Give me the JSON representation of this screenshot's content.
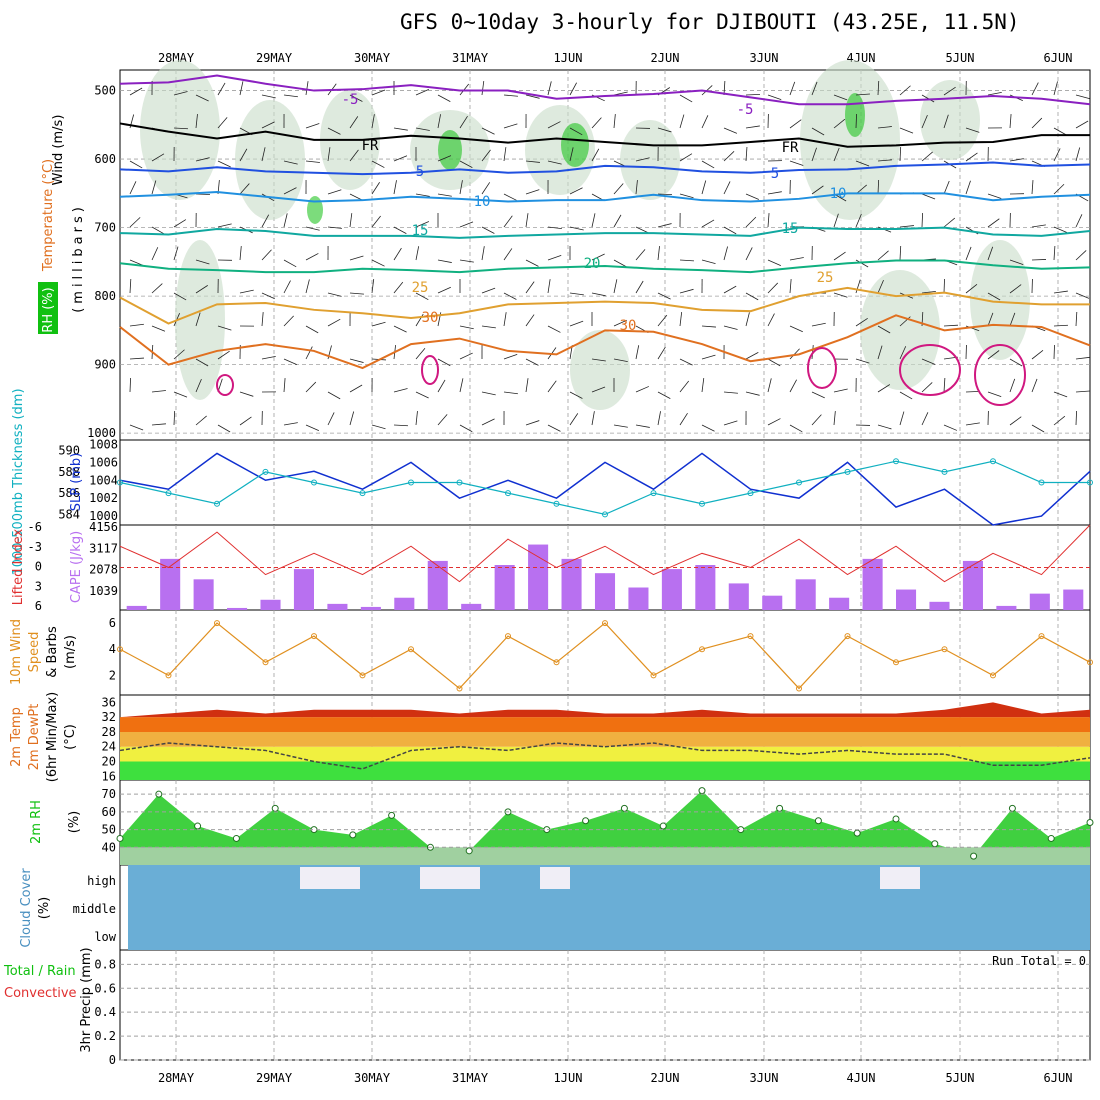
{
  "header": {
    "title": "GFS 0~10day 3-hourly for DJIBOUTI (43.25E, 11.5N)"
  },
  "dates": [
    "28MAY",
    "29MAY",
    "30MAY",
    "31MAY",
    "1JUN",
    "2JUN",
    "3JUN",
    "4JUN",
    "5JUN",
    "6JUN"
  ],
  "colors": {
    "temp": "#e07020",
    "rh": "#10c010",
    "slp": "#1030d0",
    "thick": "#10b0c0",
    "lifted": "#e03030",
    "cape": "#b870f0",
    "wind": "#e09020",
    "cloud": "#6aaed6",
    "grid": "#a0a0a0"
  },
  "panels": {
    "upper": {
      "ylabel_wind": "Wind (m/s)",
      "ylabel_temp": "Temperature (°C)",
      "ylabel_rh": "RH (%)",
      "ylabel_units": "(millibars)",
      "ticks": [
        500,
        600,
        700,
        800,
        900,
        1000
      ],
      "contour_labels": [
        {
          "text": "-5",
          "series": "minus5"
        },
        {
          "text": "-5",
          "series": "minus5b"
        },
        {
          "text": "FR",
          "series": "fr"
        },
        {
          "text": "FR",
          "series": "fr2"
        },
        {
          "text": "5",
          "series": "t5"
        },
        {
          "text": "5",
          "series": "t5b"
        },
        {
          "text": "10",
          "series": "t10"
        },
        {
          "text": "10",
          "series": "t10b"
        },
        {
          "text": "15",
          "series": "t15"
        },
        {
          "text": "15",
          "series": "t15b"
        },
        {
          "text": "20",
          "series": "t20"
        },
        {
          "text": "25",
          "series": "t25"
        },
        {
          "text": "25",
          "series": "t25b"
        },
        {
          "text": "30",
          "series": "t30"
        },
        {
          "text": "30",
          "series": "t30b"
        }
      ]
    },
    "slp": {
      "ylabel_thick": "1000-500mb Thickness (dm)",
      "ylabel_slp": "SLP (mb)",
      "left_ticks": [
        584,
        586,
        588,
        590
      ],
      "right_ticks": [
        1000,
        1002,
        1004,
        1006,
        1008
      ]
    },
    "cape": {
      "ylabel_li": "Lifted Index",
      "ylabel_cape": "CAPE (J/kg)",
      "li_ticks": [
        "-6",
        "-3",
        "0",
        "3",
        "6"
      ],
      "cape_ticks": [
        "4156",
        "3117",
        "2078",
        "1039"
      ]
    },
    "wind10": {
      "ylabel1": "10m Wind",
      "ylabel2": "Speed",
      "ylabel3": "& Barbs",
      "ylabel4": "(m/s)",
      "ticks": [
        2,
        4,
        6
      ]
    },
    "temp2m": {
      "ylabel1": "2m Temp",
      "ylabel2": "2m DewPt",
      "ylabel3": "(6hr Min/Max)",
      "ylabel4": "(°C)",
      "ticks": [
        "16",
        "20",
        "24",
        "28",
        "32",
        "36"
      ]
    },
    "rh2m": {
      "ylabel1": "2m RH",
      "ylabel2": "(%)",
      "ticks": [
        40,
        50,
        60,
        70
      ]
    },
    "cloud": {
      "ylabel1": "Cloud Cover",
      "ylabel2": "(%)",
      "levels": [
        "high",
        "middle",
        "low"
      ]
    },
    "precip": {
      "ylabel1": "Total / Rain",
      "ylabel2": "Convective",
      "ylabel3": "3hr Precip (mm)",
      "ticks": [
        "0",
        "0.2",
        "0.4",
        "0.6",
        "0.8"
      ],
      "run_total": "Run Total = 0"
    }
  },
  "chart_data": {
    "type": "line",
    "x_unit": "3-hourly steps from 27MAY 12Z",
    "temp_contours": {
      "minus5": [
        490,
        488,
        478,
        490,
        500,
        498,
        492,
        500,
        500,
        512,
        508,
        505,
        500,
        510,
        520,
        520,
        515,
        512,
        508,
        512,
        520
      ],
      "fr": [
        548,
        560,
        570,
        560,
        572,
        572,
        566,
        570,
        576,
        570,
        575,
        580,
        580,
        575,
        570,
        582,
        580,
        576,
        575,
        565,
        565
      ],
      "t5": [
        615,
        618,
        612,
        618,
        620,
        622,
        620,
        615,
        620,
        618,
        610,
        612,
        618,
        620,
        616,
        615,
        610,
        608,
        605,
        610,
        608
      ],
      "t10": [
        655,
        652,
        648,
        655,
        662,
        660,
        655,
        658,
        662,
        660,
        660,
        652,
        660,
        662,
        658,
        650,
        650,
        650,
        660,
        655,
        652
      ],
      "t15": [
        708,
        710,
        702,
        705,
        712,
        712,
        712,
        715,
        712,
        710,
        708,
        708,
        710,
        712,
        700,
        702,
        702,
        700,
        710,
        712,
        705
      ],
      "t20": [
        752,
        760,
        762,
        765,
        765,
        760,
        762,
        765,
        760,
        758,
        756,
        760,
        762,
        765,
        758,
        752,
        748,
        748,
        755,
        760,
        758
      ],
      "t25": [
        802,
        840,
        812,
        810,
        820,
        825,
        832,
        825,
        812,
        810,
        808,
        810,
        820,
        822,
        800,
        788,
        800,
        795,
        808,
        812,
        812
      ],
      "t30": [
        845,
        900,
        880,
        870,
        880,
        905,
        870,
        862,
        880,
        885,
        850,
        852,
        870,
        895,
        885,
        860,
        828,
        850,
        842,
        845,
        872
      ]
    },
    "slp": [
      1004,
      1003,
      1007,
      1004,
      1005,
      1003,
      1006,
      1002,
      1004,
      1002,
      1006,
      1003,
      1007,
      1003,
      1002,
      1006,
      1001,
      1003,
      999,
      1000,
      1005
    ],
    "thickness": [
      587,
      586,
      585,
      588,
      587,
      586,
      587,
      587,
      586,
      585,
      584,
      586,
      585,
      586,
      587,
      588,
      589,
      588,
      589,
      587,
      587
    ],
    "lifted_index": [
      -3,
      0,
      -5,
      1,
      -2,
      1,
      -3,
      2,
      -4,
      0,
      -3,
      1,
      -2,
      0,
      -4,
      1,
      -3,
      2,
      -2,
      1,
      -6
    ],
    "cape": [
      200,
      2500,
      1500,
      100,
      500,
      2000,
      300,
      150,
      600,
      2400,
      300,
      2200,
      3200,
      2500,
      1800,
      1100,
      2000,
      2200,
      1300,
      700,
      1500,
      600,
      2500,
      1000,
      400,
      2400,
      200,
      800,
      1000
    ],
    "wind_speed": [
      4,
      2,
      6,
      3,
      5,
      2,
      4,
      1,
      5,
      3,
      6,
      2,
      4,
      5,
      1,
      5,
      3,
      4,
      2,
      5,
      3
    ],
    "temp2m": [
      32,
      33,
      34,
      33,
      34,
      34,
      34,
      33,
      34,
      34,
      33,
      33,
      34,
      33,
      33,
      33,
      33,
      34,
      36,
      33,
      34
    ],
    "dewpt2m": [
      23,
      25,
      24,
      23,
      20,
      18,
      23,
      24,
      23,
      25,
      24,
      25,
      23,
      23,
      22,
      23,
      22,
      22,
      19,
      19,
      21
    ],
    "rh2m": [
      45,
      70,
      52,
      45,
      62,
      50,
      47,
      58,
      40,
      38,
      60,
      50,
      55,
      62,
      52,
      72,
      50,
      62,
      55,
      48,
      56,
      42,
      35,
      62,
      45,
      54
    ],
    "precip": [
      0,
      0,
      0,
      0,
      0,
      0,
      0,
      0,
      0,
      0,
      0
    ]
  }
}
